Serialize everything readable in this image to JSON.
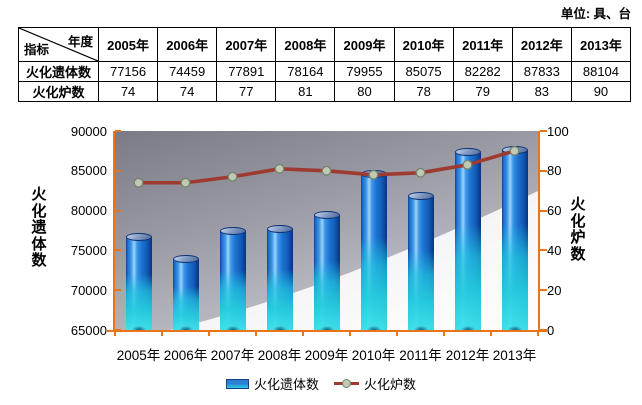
{
  "unit_label": "单位: 具、台",
  "table": {
    "corner_top": "年度",
    "corner_bottom": "指标",
    "years": [
      "2005年",
      "2006年",
      "2007年",
      "2008年",
      "2009年",
      "2010年",
      "2011年",
      "2012年",
      "2013年"
    ],
    "rows": [
      {
        "label": "火化遗体数",
        "values": [
          "77156",
          "74459",
          "77891",
          "78164",
          "79955",
          "85075",
          "82282",
          "87833",
          "88104"
        ]
      },
      {
        "label": "火化炉数",
        "values": [
          "74",
          "74",
          "77",
          "81",
          "80",
          "78",
          "79",
          "83",
          "90"
        ]
      }
    ]
  },
  "chart_data": {
    "type": "combo",
    "categories": [
      "2005年",
      "2006年",
      "2007年",
      "2008年",
      "2009年",
      "2010年",
      "2011年",
      "2012年",
      "2013年"
    ],
    "series": [
      {
        "name": "火化遗体数",
        "type": "bar",
        "axis": "left",
        "values": [
          77156,
          74459,
          77891,
          78164,
          79955,
          85075,
          82282,
          87833,
          88104
        ]
      },
      {
        "name": "火化炉数",
        "type": "line",
        "axis": "right",
        "values": [
          74,
          74,
          77,
          81,
          80,
          78,
          79,
          83,
          90
        ]
      }
    ],
    "left_axis": {
      "title": "火化遗体数",
      "min": 65000,
      "max": 90000,
      "step": 5000
    },
    "right_axis": {
      "title": "火化炉数",
      "min": 0,
      "max": 100,
      "step": 20
    },
    "legend": [
      "火化遗体数",
      "火化炉数"
    ],
    "grid": false,
    "legend_position": "bottom",
    "colors": {
      "bar_main": "#1e78d0",
      "bar_cyan": "#2fd4e6",
      "line": "#9e3b31",
      "marker_fill": "#bfc9b3",
      "marker_stroke": "#75836c",
      "axis": "#e8751a"
    }
  }
}
